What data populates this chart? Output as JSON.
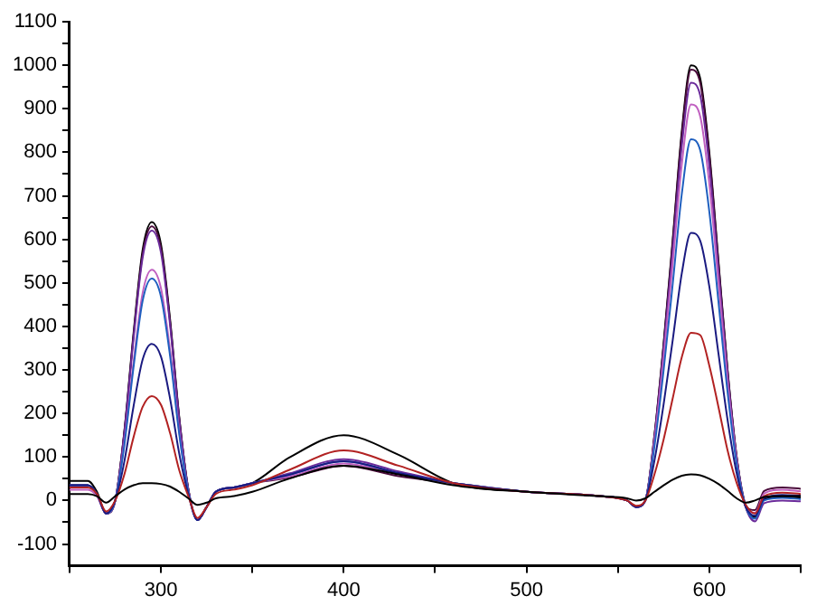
{
  "chart_data": {
    "type": "line",
    "x": [
      250,
      260,
      265,
      270,
      275,
      280,
      285,
      290,
      295,
      300,
      305,
      310,
      315,
      320,
      325,
      330,
      340,
      350,
      370,
      400,
      430,
      460,
      500,
      540,
      555,
      560,
      565,
      570,
      575,
      580,
      585,
      590,
      595,
      600,
      605,
      610,
      615,
      620,
      625,
      630,
      640,
      650
    ],
    "xlim": [
      250,
      650
    ],
    "xticks": [
      {
        "value": 250,
        "label": null
      },
      300,
      {
        "value": 350,
        "label": null
      },
      400,
      {
        "value": 450,
        "label": null
      },
      500,
      {
        "value": 550,
        "label": null
      },
      600,
      {
        "value": 650,
        "label": null
      }
    ],
    "ylim": [
      -150,
      1100
    ],
    "yticks": [
      -100,
      {
        "value": -50,
        "label": null
      },
      0,
      {
        "value": 50,
        "label": null
      },
      100,
      {
        "value": 150,
        "label": null
      },
      200,
      {
        "value": 250,
        "label": null
      },
      300,
      {
        "value": 350,
        "label": null
      },
      400,
      {
        "value": 450,
        "label": null
      },
      500,
      {
        "value": 550,
        "label": null
      },
      600,
      {
        "value": 650,
        "label": null
      },
      700,
      {
        "value": 750,
        "label": null
      },
      800,
      {
        "value": 850,
        "label": null
      },
      900,
      {
        "value": 950,
        "label": null
      },
      1000,
      {
        "value": 1050,
        "label": null
      },
      1100
    ],
    "grid": false,
    "legend": false,
    "marker": "none",
    "line_style": "solid",
    "series": [
      {
        "color": "#000000",
        "values": [
          15,
          15,
          10,
          -5,
          10,
          25,
          35,
          40,
          40,
          38,
          32,
          20,
          5,
          -10,
          -5,
          5,
          10,
          20,
          50,
          80,
          60,
          35,
          20,
          10,
          5,
          0,
          5,
          20,
          35,
          48,
          57,
          60,
          58,
          50,
          38,
          22,
          5,
          -5,
          0,
          8,
          10,
          10
        ]
      },
      {
        "color": "#b22222",
        "values": [
          30,
          30,
          15,
          -25,
          0,
          60,
          145,
          215,
          240,
          220,
          155,
          70,
          10,
          -40,
          -15,
          15,
          25,
          35,
          70,
          115,
          80,
          40,
          20,
          10,
          0,
          -12,
          0,
          60,
          140,
          235,
          330,
          385,
          380,
          310,
          215,
          115,
          40,
          -10,
          -30,
          10,
          18,
          15
        ]
      },
      {
        "color": "#1a1a80",
        "values": [
          35,
          35,
          15,
          -30,
          0,
          90,
          216,
          324,
          360,
          331,
          234,
          108,
          14,
          -45,
          -15,
          20,
          30,
          40,
          59,
          90,
          63,
          40,
          20,
          10,
          0,
          -15,
          0,
          92,
          221,
          369,
          523,
          615,
          597,
          492,
          338,
          185,
          62,
          -15,
          -35,
          5,
          13,
          11
        ]
      },
      {
        "color": "#1f5fbf",
        "values": [
          35,
          35,
          15,
          -30,
          0,
          128,
          306,
          459,
          510,
          469,
          332,
          153,
          20,
          -45,
          -15,
          20,
          30,
          40,
          59,
          90,
          63,
          40,
          20,
          10,
          0,
          -15,
          0,
          125,
          299,
          498,
          706,
          830,
          805,
          664,
          457,
          249,
          83,
          -15,
          -42,
          0,
          6,
          3
        ]
      },
      {
        "color": "#c060c0",
        "values": [
          25,
          25,
          10,
          -30,
          0,
          133,
          318,
          477,
          530,
          488,
          345,
          159,
          21,
          -45,
          -15,
          20,
          30,
          40,
          55,
          85,
          60,
          40,
          20,
          10,
          0,
          -15,
          0,
          137,
          328,
          546,
          774,
          910,
          883,
          728,
          501,
          273,
          91,
          -15,
          -28,
          16,
          25,
          21
        ]
      },
      {
        "color": "#6a2a9a",
        "values": [
          35,
          35,
          15,
          -30,
          0,
          155,
          372,
          558,
          620,
          570,
          403,
          186,
          25,
          -45,
          -15,
          20,
          30,
          40,
          62,
          95,
          67,
          40,
          20,
          10,
          0,
          -15,
          0,
          144,
          346,
          576,
          816,
          960,
          931,
          768,
          528,
          288,
          96,
          -15,
          -48,
          -6,
          0,
          -2
        ]
      },
      {
        "color": "#4a0a3a",
        "values": [
          35,
          35,
          15,
          -30,
          0,
          158,
          378,
          567,
          630,
          580,
          410,
          189,
          25,
          -45,
          -15,
          20,
          30,
          40,
          52,
          80,
          56,
          40,
          20,
          10,
          0,
          -15,
          0,
          149,
          356,
          594,
          842,
          990,
          960,
          792,
          545,
          297,
          99,
          -15,
          -22,
          22,
          30,
          27
        ]
      },
      {
        "color": "#000000",
        "values": [
          45,
          45,
          20,
          -30,
          0,
          160,
          384,
          576,
          640,
          589,
          416,
          192,
          26,
          -45,
          -15,
          20,
          30,
          40,
          98,
          150,
          105,
          40,
          20,
          10,
          0,
          -15,
          0,
          150,
          360,
          600,
          850,
          1000,
          970,
          800,
          550,
          300,
          100,
          -15,
          -38,
          2,
          9,
          7
        ]
      }
    ]
  }
}
